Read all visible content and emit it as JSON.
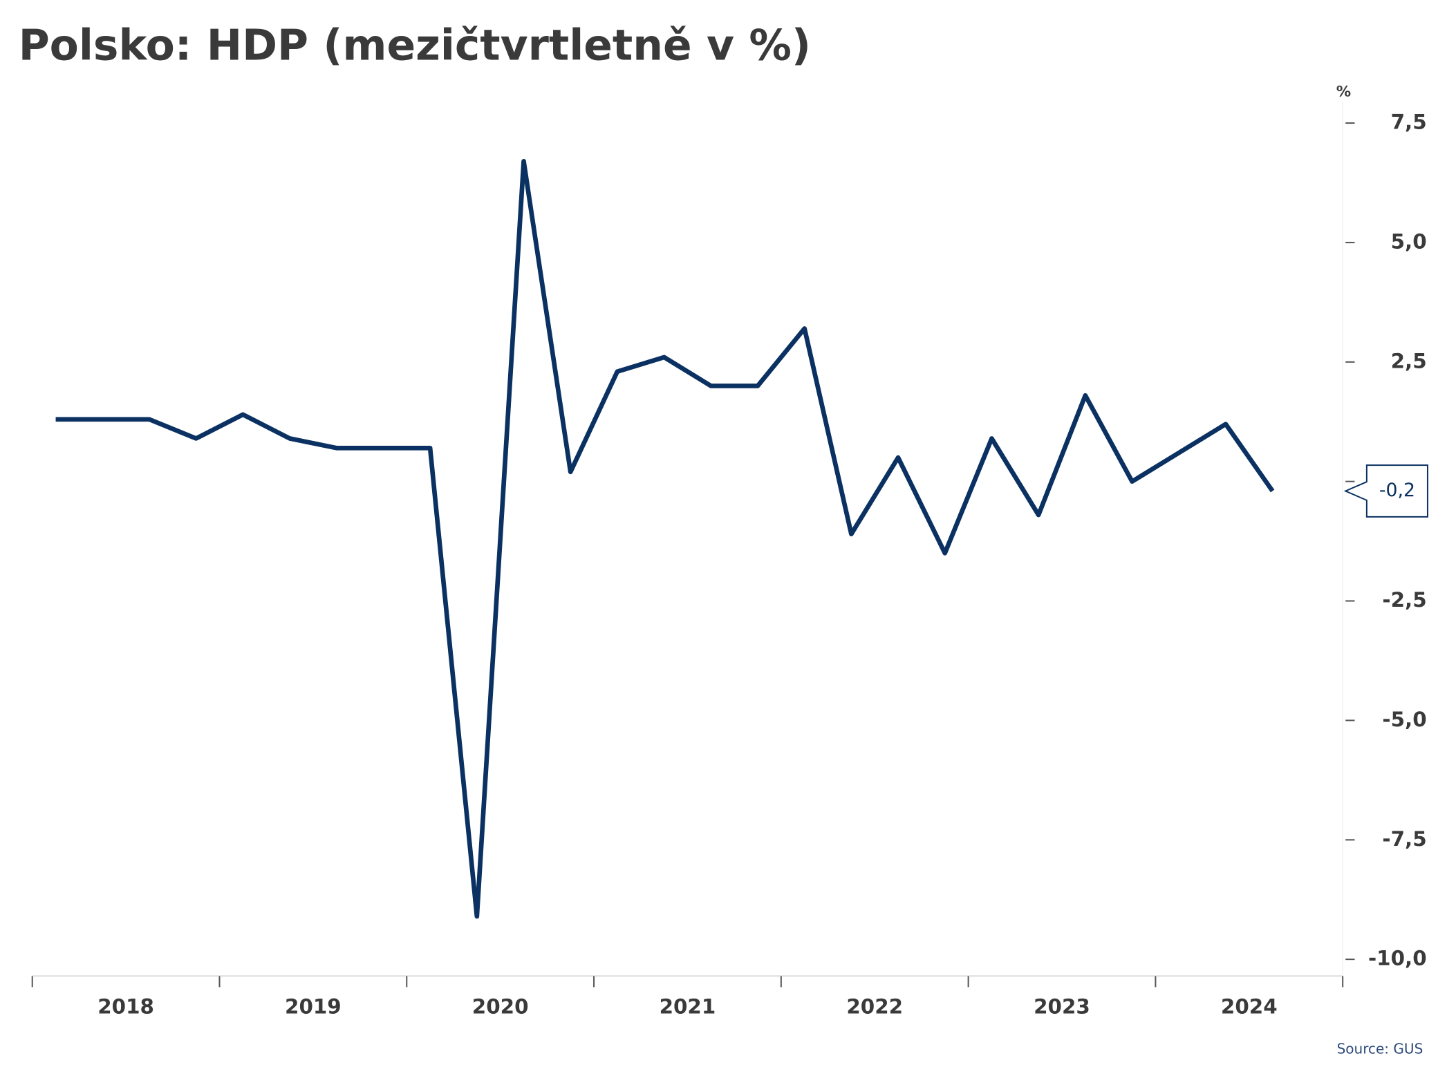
{
  "chart_data": {
    "type": "line",
    "title": "Polsko: HDP (mezičtvrtletně v %)",
    "y_unit": "%",
    "source": "Source: GUS",
    "year_labels": [
      "2018",
      "2019",
      "2020",
      "2021",
      "2022",
      "2023",
      "2024"
    ],
    "series": [
      {
        "name": "HDP",
        "color": "#0a3161",
        "values": [
          1.3,
          1.3,
          1.3,
          0.9,
          1.4,
          0.9,
          0.7,
          0.7,
          0.7,
          -9.1,
          6.7,
          0.2,
          2.3,
          2.6,
          2.0,
          2.0,
          3.2,
          -1.1,
          0.5,
          -1.5,
          0.9,
          -0.7,
          1.8,
          0.0,
          0.6,
          1.2,
          -0.2
        ],
        "value_labels": [
          null,
          null,
          null,
          null,
          null,
          null,
          null,
          null,
          null,
          null,
          null,
          null,
          null,
          null,
          null,
          null,
          null,
          null,
          null,
          null,
          null,
          null,
          null,
          null,
          null,
          null,
          "-0,2"
        ]
      }
    ],
    "ylim": [
      -10.35,
      7.95
    ],
    "yticks": [
      {
        "value": 7.5,
        "label": "7,5"
      },
      {
        "value": 5,
        "label": "5,0"
      },
      {
        "value": 2.5,
        "label": "2,5"
      },
      {
        "value": 0,
        "label": "-"
      },
      {
        "value": -2.5,
        "label": "-2,5"
      },
      {
        "value": -5,
        "label": "-5,0"
      },
      {
        "value": -7.5,
        "label": "-7,5"
      },
      {
        "value": -10,
        "label": "-10,0"
      }
    ]
  }
}
